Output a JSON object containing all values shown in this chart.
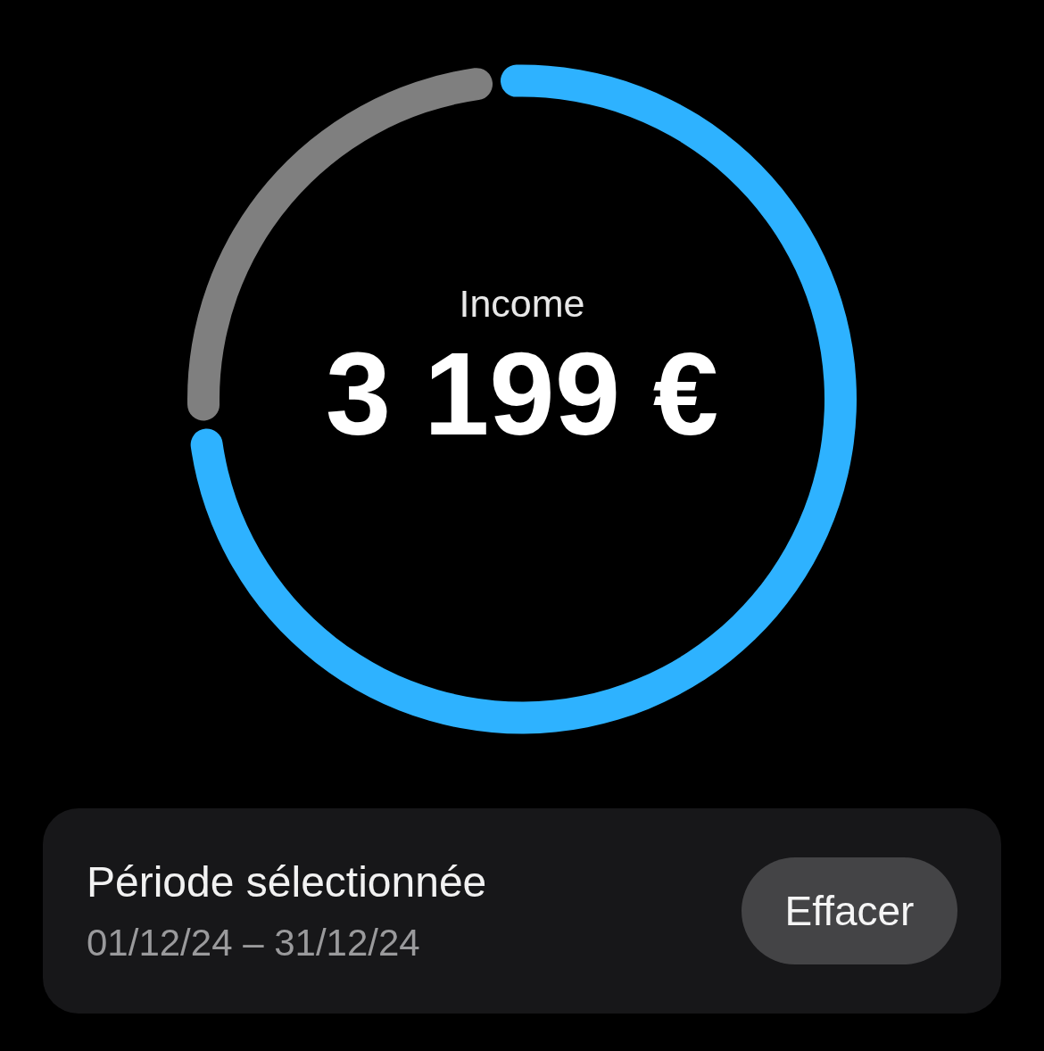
{
  "chart_data": [
    {
      "type": "donut",
      "title": "Income",
      "annotations": [
        "3 199 €"
      ],
      "categories": [
        null,
        null
      ],
      "values": [
        75,
        25
      ],
      "colors": [
        "#2eb2ff",
        "#7f7f7f"
      ]
    },
    {
      "type": "other",
      "title": "Période sélectionnée",
      "subtitle": "01/12/24 – 31/12/24",
      "annotations": [
        "Effacer"
      ]
    }
  ]
}
